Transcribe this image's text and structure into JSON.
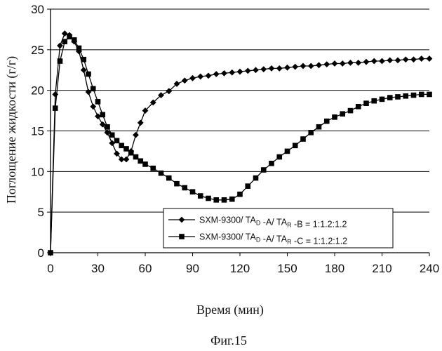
{
  "chart_data": {
    "type": "line",
    "xlabel": "Время (мин)",
    "ylabel": "Поглощение жидкости (г/г)",
    "caption": "Фиг.15",
    "xlim": [
      0,
      240
    ],
    "ylim": [
      0,
      30
    ],
    "xticks": [
      "0",
      "30",
      "60",
      "90",
      "120",
      "150",
      "180",
      "210",
      "240"
    ],
    "yticks": [
      "0",
      "5",
      "10",
      "15",
      "20",
      "25",
      "30"
    ],
    "grid": "horizontal",
    "legend_position": "lower-right",
    "series": [
      {
        "name": "SXM-9300/ TAD -A/ TAR -B = 1:1.2:1.2",
        "legend": {
          "prefix": "SXM-9300/ TA",
          "sub1": "D",
          "mid": " -A/ TA",
          "sub2": "R",
          "suffix": " -B = 1:1.2:1.2"
        },
        "marker": "diamond",
        "x": [
          0,
          3,
          6,
          9,
          12,
          15,
          18,
          21,
          24,
          27,
          30,
          33,
          36,
          39,
          42,
          45,
          48,
          51,
          54,
          57,
          60,
          65,
          70,
          75,
          80,
          85,
          90,
          95,
          100,
          105,
          110,
          115,
          120,
          125,
          130,
          135,
          140,
          145,
          150,
          155,
          160,
          165,
          170,
          175,
          180,
          185,
          190,
          195,
          200,
          205,
          210,
          215,
          220,
          225,
          230,
          235,
          240
        ],
        "y": [
          0,
          19.5,
          25.5,
          27.0,
          26.8,
          26.0,
          24.8,
          22.5,
          19.8,
          18.0,
          16.8,
          15.8,
          14.8,
          13.5,
          12.2,
          11.5,
          11.5,
          12.5,
          14.5,
          16.0,
          17.5,
          18.5,
          19.4,
          19.9,
          20.8,
          21.2,
          21.5,
          21.7,
          21.8,
          22.0,
          22.1,
          22.2,
          22.3,
          22.4,
          22.5,
          22.6,
          22.7,
          22.7,
          22.8,
          22.9,
          23.0,
          23.0,
          23.1,
          23.2,
          23.3,
          23.3,
          23.4,
          23.4,
          23.5,
          23.6,
          23.6,
          23.7,
          23.7,
          23.8,
          23.8,
          23.9,
          23.9
        ]
      },
      {
        "name": "SXM-9300/ TAD -A/ TAR -C = 1:1.2:1.2",
        "legend": {
          "prefix": "SXM-9300/ TA",
          "sub1": "D",
          "mid": " -A/ TA",
          "sub2": "R",
          "suffix": " -C = 1:1.2:1.2"
        },
        "marker": "square",
        "x": [
          0,
          3,
          6,
          9,
          12,
          15,
          18,
          21,
          24,
          27,
          30,
          33,
          36,
          39,
          42,
          45,
          48,
          51,
          54,
          57,
          60,
          65,
          70,
          75,
          80,
          85,
          90,
          95,
          100,
          105,
          110,
          115,
          120,
          125,
          130,
          135,
          140,
          145,
          150,
          155,
          160,
          165,
          170,
          175,
          180,
          185,
          190,
          195,
          200,
          205,
          210,
          215,
          220,
          225,
          230,
          235,
          240
        ],
        "y": [
          0,
          17.8,
          23.6,
          26.0,
          26.6,
          26.2,
          25.2,
          23.8,
          22.0,
          20.2,
          18.6,
          17.0,
          15.5,
          14.5,
          13.8,
          13.2,
          12.8,
          12.3,
          11.8,
          11.3,
          10.9,
          10.4,
          9.8,
          9.2,
          8.5,
          8.0,
          7.5,
          7.0,
          6.7,
          6.5,
          6.5,
          6.6,
          7.2,
          8.2,
          9.2,
          10.2,
          11.0,
          11.8,
          12.5,
          13.2,
          14.0,
          14.8,
          15.5,
          16.2,
          16.7,
          17.1,
          17.5,
          18.0,
          18.4,
          18.7,
          18.9,
          19.1,
          19.2,
          19.3,
          19.4,
          19.5,
          19.5
        ]
      }
    ]
  }
}
